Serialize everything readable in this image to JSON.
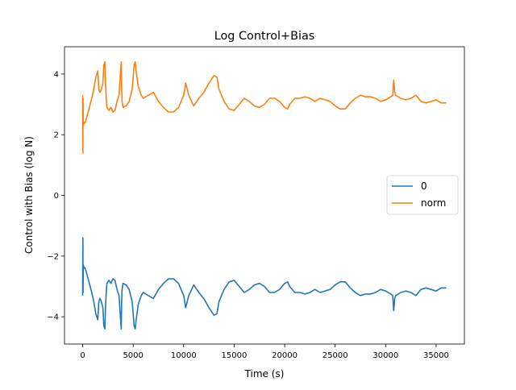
{
  "chart_data": {
    "type": "line",
    "title": "Log Control+Bias",
    "xlabel": "Time (s)",
    "ylabel": "Control with Bias (log N)",
    "xlim": [
      -1800,
      37800
    ],
    "ylim": [
      -4.9,
      4.9
    ],
    "xticks": [
      0,
      5000,
      10000,
      15000,
      20000,
      25000,
      30000,
      35000
    ],
    "xtick_labels": [
      "0",
      "5000",
      "10000",
      "15000",
      "20000",
      "25000",
      "30000",
      "35000"
    ],
    "yticks": [
      -4,
      -2,
      0,
      2,
      4
    ],
    "ytick_labels": [
      "−4",
      "−2",
      "0",
      "2",
      "4"
    ],
    "grid": false,
    "legend_position": "center-right",
    "series": [
      {
        "name": "0",
        "color": "#1f77b4",
        "x": [
          0,
          20,
          40,
          60,
          80,
          100,
          150,
          200,
          300,
          500,
          700,
          900,
          1100,
          1300,
          1500,
          1600,
          1700,
          1800,
          2000,
          2100,
          2200,
          2250,
          2300,
          2350,
          2400,
          2600,
          2800,
          3000,
          3200,
          3400,
          3600,
          3800,
          3820,
          3850,
          3900,
          4000,
          4300,
          4600,
          4900,
          5100,
          5200,
          5300,
          5500,
          5800,
          6000,
          6500,
          7000,
          7500,
          8000,
          8500,
          9000,
          9500,
          10000,
          10200,
          10500,
          11000,
          11500,
          12000,
          12500,
          13000,
          13300,
          13500,
          14000,
          14500,
          15000,
          15500,
          16000,
          16500,
          17000,
          17500,
          18000,
          18500,
          19000,
          19500,
          20000,
          20300,
          20500,
          21000,
          21500,
          22000,
          22500,
          23000,
          23500,
          24000,
          24500,
          25000,
          25500,
          26000,
          26500,
          27000,
          27500,
          28000,
          28500,
          29000,
          29500,
          30000,
          30500,
          30700,
          30800,
          30900,
          31000,
          31500,
          32000,
          32500,
          33000,
          33500,
          34000,
          34500,
          35000,
          35500,
          36000
        ],
        "y": [
          -3.3,
          -1.4,
          -3.2,
          -2.4,
          -2.3,
          -2.35,
          -2.4,
          -2.38,
          -2.45,
          -2.7,
          -2.95,
          -3.2,
          -3.5,
          -3.9,
          -4.1,
          -3.5,
          -3.4,
          -3.45,
          -3.7,
          -4.3,
          -4.4,
          -3.8,
          -3.4,
          -3.1,
          -2.9,
          -2.8,
          -2.9,
          -2.75,
          -2.8,
          -3.1,
          -3.3,
          -4.3,
          -4.4,
          -3.6,
          -3.1,
          -2.9,
          -2.95,
          -3.1,
          -3.5,
          -4.3,
          -4.4,
          -4.1,
          -3.6,
          -3.3,
          -3.2,
          -3.3,
          -3.4,
          -3.1,
          -2.9,
          -2.75,
          -2.75,
          -2.9,
          -3.3,
          -3.7,
          -3.3,
          -2.95,
          -3.2,
          -3.4,
          -3.7,
          -3.95,
          -3.9,
          -3.5,
          -3.1,
          -2.85,
          -2.8,
          -3.0,
          -3.2,
          -3.1,
          -2.95,
          -2.9,
          -3.0,
          -3.2,
          -3.2,
          -3.1,
          -2.9,
          -2.85,
          -3.0,
          -3.2,
          -3.2,
          -3.25,
          -3.2,
          -3.1,
          -3.2,
          -3.15,
          -3.1,
          -2.95,
          -2.85,
          -2.85,
          -3.05,
          -3.2,
          -3.3,
          -3.25,
          -3.25,
          -3.2,
          -3.1,
          -3.15,
          -3.25,
          -3.3,
          -3.8,
          -3.4,
          -3.3,
          -3.2,
          -3.15,
          -3.2,
          -3.3,
          -3.1,
          -3.05,
          -3.1,
          -3.15,
          -3.05,
          -3.05
        ]
      },
      {
        "name": "norm",
        "color": "#ff7f0e",
        "x": [
          0,
          20,
          40,
          60,
          80,
          100,
          150,
          200,
          300,
          500,
          700,
          900,
          1100,
          1300,
          1500,
          1600,
          1700,
          1800,
          2000,
          2100,
          2200,
          2250,
          2300,
          2350,
          2400,
          2600,
          2800,
          3000,
          3200,
          3400,
          3600,
          3800,
          3820,
          3850,
          3900,
          4000,
          4300,
          4600,
          4900,
          5100,
          5200,
          5300,
          5500,
          5800,
          6000,
          6500,
          7000,
          7500,
          8000,
          8500,
          9000,
          9500,
          10000,
          10200,
          10500,
          11000,
          11500,
          12000,
          12500,
          13000,
          13300,
          13500,
          14000,
          14500,
          15000,
          15500,
          16000,
          16500,
          17000,
          17500,
          18000,
          18500,
          19000,
          19500,
          20000,
          20300,
          20500,
          21000,
          21500,
          22000,
          22500,
          23000,
          23500,
          24000,
          24500,
          25000,
          25500,
          26000,
          26500,
          27000,
          27500,
          28000,
          28500,
          29000,
          29500,
          30000,
          30500,
          30700,
          30800,
          30900,
          31000,
          31500,
          32000,
          32500,
          33000,
          33500,
          34000,
          34500,
          35000,
          35500,
          36000
        ],
        "y": [
          3.3,
          1.4,
          3.2,
          2.4,
          2.3,
          2.35,
          2.4,
          2.38,
          2.45,
          2.7,
          2.95,
          3.2,
          3.5,
          3.9,
          4.1,
          3.5,
          3.4,
          3.45,
          3.7,
          4.3,
          4.4,
          3.8,
          3.4,
          3.1,
          2.9,
          2.8,
          2.9,
          2.75,
          2.8,
          3.1,
          3.3,
          4.3,
          4.4,
          3.6,
          3.1,
          2.9,
          2.95,
          3.1,
          3.5,
          4.3,
          4.4,
          4.1,
          3.6,
          3.3,
          3.2,
          3.3,
          3.4,
          3.1,
          2.9,
          2.75,
          2.75,
          2.9,
          3.3,
          3.7,
          3.3,
          2.95,
          3.2,
          3.4,
          3.7,
          3.95,
          3.9,
          3.5,
          3.1,
          2.85,
          2.8,
          3.0,
          3.2,
          3.1,
          2.95,
          2.9,
          3.0,
          3.2,
          3.2,
          3.1,
          2.9,
          2.85,
          3.0,
          3.2,
          3.2,
          3.25,
          3.2,
          3.1,
          3.2,
          3.15,
          3.1,
          2.95,
          2.85,
          2.85,
          3.05,
          3.2,
          3.3,
          3.25,
          3.25,
          3.2,
          3.1,
          3.15,
          3.25,
          3.3,
          3.8,
          3.4,
          3.3,
          3.2,
          3.15,
          3.2,
          3.3,
          3.1,
          3.05,
          3.1,
          3.15,
          3.05,
          3.05
        ]
      }
    ]
  }
}
